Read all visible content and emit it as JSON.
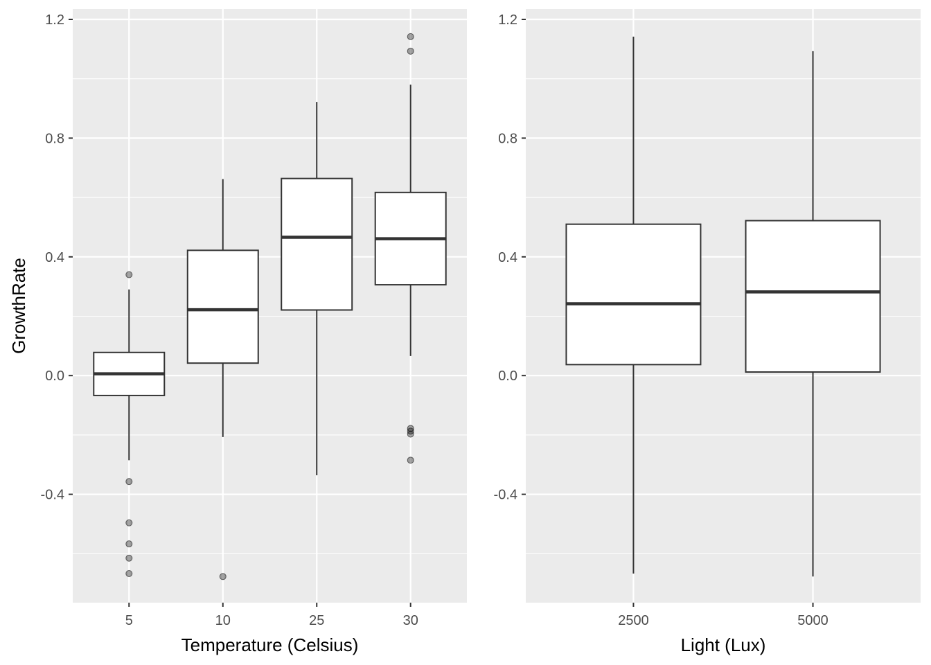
{
  "chart_data": [
    {
      "type": "box",
      "xlabel": "Temperature (Celsius)",
      "ylabel": "GrowthRate",
      "ylim": [
        -0.765,
        1.235
      ],
      "yticks": [
        -0.4,
        0.0,
        0.4,
        0.8,
        1.2
      ],
      "y_tick_labels": [
        "-0.4",
        "0.0",
        "0.4",
        "0.8",
        "1.2"
      ],
      "grid": true,
      "categories": [
        "5",
        "10",
        "25",
        "30"
      ],
      "boxes": [
        {
          "category": "5",
          "whisker_low": -0.285,
          "q1": -0.067,
          "median": 0.006,
          "q3": 0.078,
          "whisker_high": 0.29,
          "outliers": [
            0.34,
            -0.357,
            -0.496,
            -0.567,
            -0.615,
            -0.667
          ]
        },
        {
          "category": "10",
          "whisker_low": -0.207,
          "q1": 0.042,
          "median": 0.222,
          "q3": 0.422,
          "whisker_high": 0.662,
          "outliers": [
            -0.677
          ]
        },
        {
          "category": "25",
          "whisker_low": -0.336,
          "q1": 0.221,
          "median": 0.466,
          "q3": 0.664,
          "whisker_high": 0.922,
          "outliers": []
        },
        {
          "category": "30",
          "whisker_low": 0.066,
          "q1": 0.306,
          "median": 0.461,
          "q3": 0.617,
          "whisker_high": 0.98,
          "outliers": [
            1.142,
            1.093,
            -0.178,
            -0.187,
            -0.197,
            -0.285
          ]
        }
      ]
    },
    {
      "type": "box",
      "xlabel": "Light (Lux)",
      "ylabel": "",
      "ylim": [
        -0.765,
        1.235
      ],
      "yticks": [
        -0.4,
        0.0,
        0.4,
        0.8,
        1.2
      ],
      "y_tick_labels": [
        "-0.4",
        "0.0",
        "0.4",
        "0.8",
        "1.2"
      ],
      "grid": true,
      "categories": [
        "2500",
        "5000"
      ],
      "boxes": [
        {
          "category": "2500",
          "whisker_low": -0.667,
          "q1": 0.037,
          "median": 0.242,
          "q3": 0.51,
          "whisker_high": 1.142,
          "outliers": []
        },
        {
          "category": "5000",
          "whisker_low": -0.677,
          "q1": 0.012,
          "median": 0.282,
          "q3": 0.522,
          "whisker_high": 1.093,
          "outliers": []
        }
      ]
    }
  ]
}
